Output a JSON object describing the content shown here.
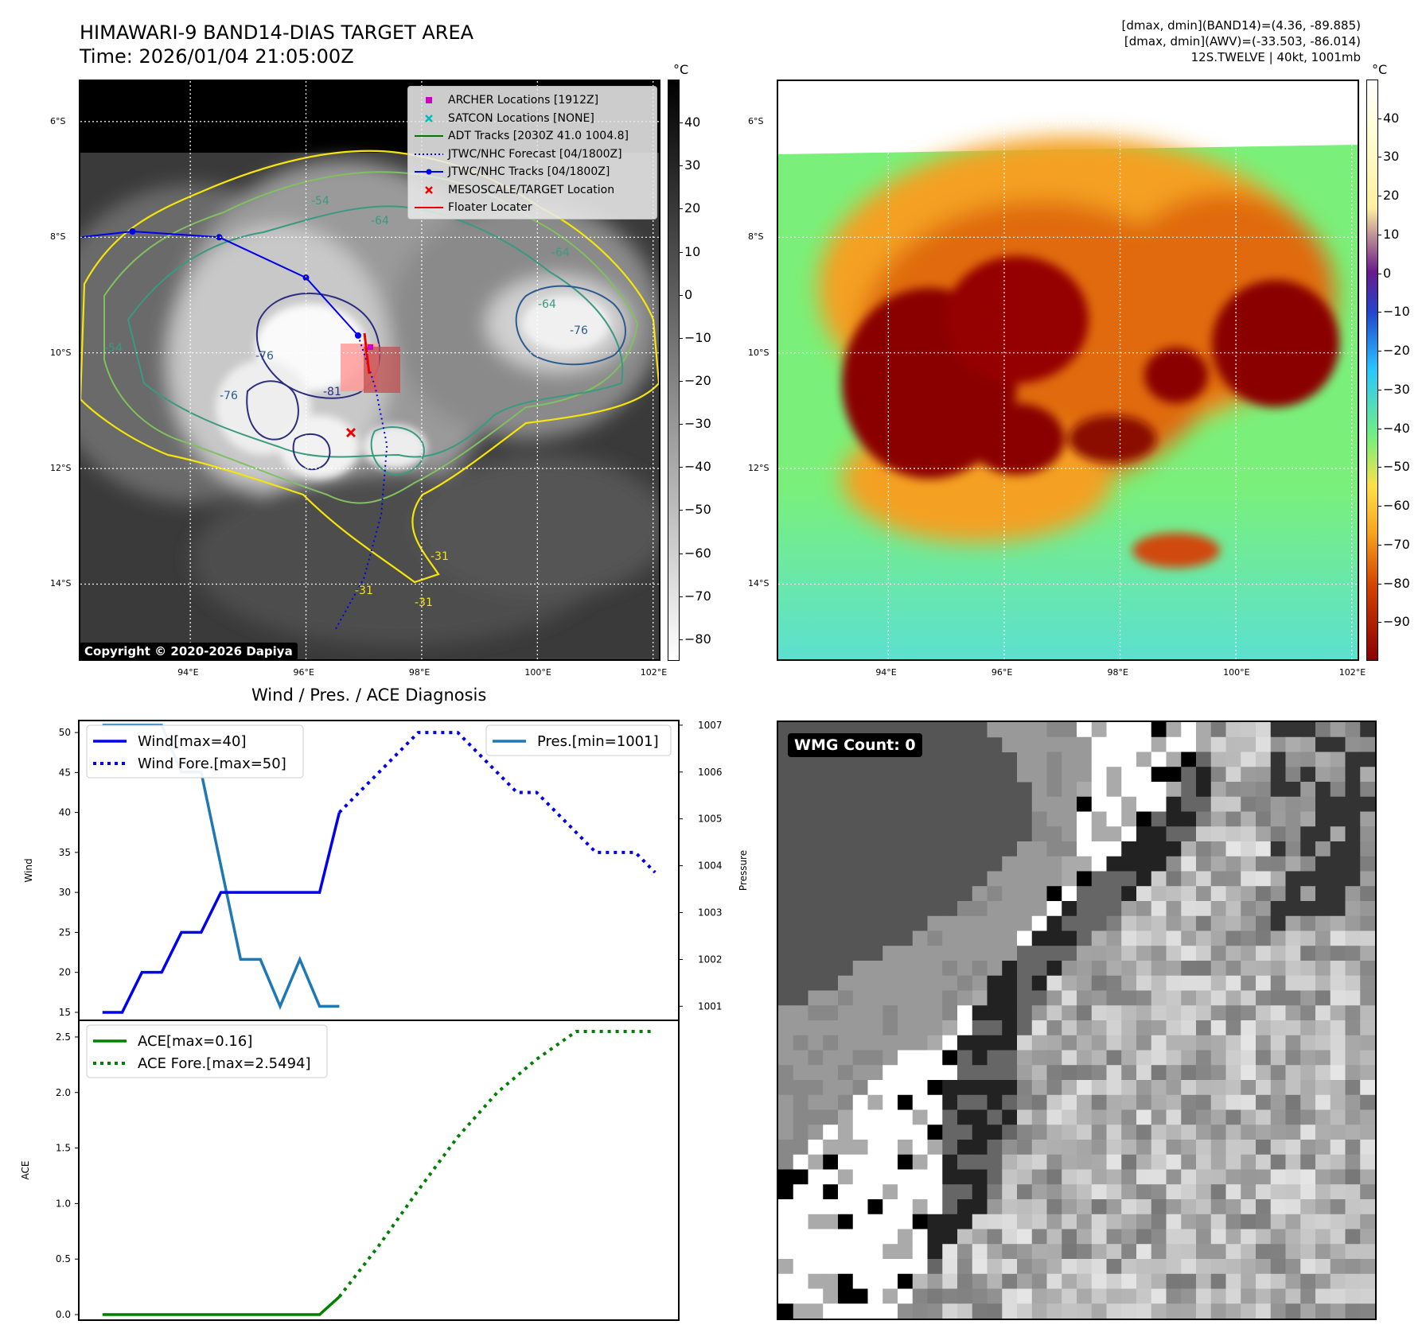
{
  "header": {
    "title_line1": "HIMAWARI-9 BAND14-DIAS TARGET AREA",
    "title_line2": "Time: 2026/01/04 21:05:00Z",
    "info_line1": "[dmax, dmin](BAND14)=(4.36, -89.885)",
    "info_line2": "[dmax, dmin](AWV)=(-33.503, -86.014)",
    "info_line3": "12S.TWELVE | 40kt, 1001mb"
  },
  "map_axes": {
    "lat_labels": [
      "6°S",
      "8°S",
      "10°S",
      "12°S",
      "14°S"
    ],
    "lon_labels": [
      "94°E",
      "96°E",
      "98°E",
      "100°E",
      "102°E"
    ],
    "lat_values": [
      -6,
      -8,
      -10,
      -12,
      -14
    ],
    "lon_values": [
      94,
      96,
      98,
      100,
      102
    ],
    "lat_range": [
      -15.3,
      -5.3
    ],
    "lon_range": [
      92.1,
      102.1
    ]
  },
  "ir_colorbar": {
    "unit": "°C",
    "ticks": [
      "40",
      "30",
      "20",
      "10",
      "0",
      "−10",
      "−20",
      "−30",
      "−40",
      "−50",
      "−60",
      "−70",
      "−80"
    ],
    "tick_values": [
      40,
      30,
      20,
      10,
      0,
      -10,
      -20,
      -30,
      -40,
      -50,
      -60,
      -70,
      -80
    ],
    "range": [
      -85,
      50
    ]
  },
  "awv_colorbar": {
    "unit": "°C",
    "ticks": [
      "40",
      "30",
      "20",
      "10",
      "0",
      "−10",
      "−20",
      "−30",
      "−40",
      "−50",
      "−60",
      "−70",
      "−80",
      "−90"
    ],
    "tick_values": [
      40,
      30,
      20,
      10,
      0,
      -10,
      -20,
      -30,
      -40,
      -50,
      -60,
      -70,
      -80,
      -90
    ],
    "range": [
      -100,
      50
    ]
  },
  "legend": {
    "items": [
      {
        "label": "ARCHER Locations [1912Z]",
        "color": "#cc00cc",
        "kind": "square"
      },
      {
        "label": "SATCON Locations [NONE]",
        "color": "#00bbbb",
        "kind": "x"
      },
      {
        "label": "ADT Tracks [2030Z 41.0 1004.8]",
        "color": "#007700",
        "kind": "line"
      },
      {
        "label": "JTWC/NHC Forecast [04/1800Z]",
        "color": "#0000ee",
        "kind": "dotted"
      },
      {
        "label": "JTWC/NHC Tracks [04/1800Z]",
        "color": "#0000ee",
        "kind": "line-dot"
      },
      {
        "label": "MESOSCALE/TARGET Location",
        "color": "#ee0000",
        "kind": "x"
      },
      {
        "label": "Floater Locater",
        "color": "#ee0000",
        "kind": "line"
      }
    ]
  },
  "copyright": "Copyright © 2020-2026 Dapiya",
  "contour_labels": [
    "-54",
    "-64",
    "-64",
    "-76",
    "-76",
    "-81",
    "-76",
    "-64",
    "-54",
    "-31",
    "-31",
    "-31"
  ],
  "track": {
    "best_track": [
      [
        92.1,
        -8.0
      ],
      [
        93.0,
        -7.9
      ],
      [
        94.5,
        -8.0
      ],
      [
        96.0,
        -8.7
      ],
      [
        96.9,
        -9.7
      ]
    ],
    "forecast": [
      [
        96.9,
        -9.7
      ],
      [
        97.2,
        -10.6
      ],
      [
        97.4,
        -11.6
      ],
      [
        97.3,
        -12.8
      ],
      [
        97.0,
        -13.9
      ],
      [
        96.5,
        -14.8
      ]
    ]
  },
  "chart_data": [
    {
      "type": "line",
      "title": "Wind / Pres. / ACE Diagnosis",
      "ylabel": "Wind",
      "y2label": "Pressure",
      "ylim": [
        14,
        51.5
      ],
      "y2lim": [
        1000.7,
        1007.1
      ],
      "yticks": [
        15,
        20,
        25,
        30,
        35,
        40,
        45,
        50
      ],
      "y2ticks": [
        1001,
        1002,
        1003,
        1004,
        1005,
        1006,
        1007
      ],
      "x": [
        0,
        1,
        2,
        3,
        4,
        5,
        6,
        7,
        8,
        9,
        10,
        11,
        12,
        13,
        14,
        15,
        16,
        17,
        18,
        19,
        20,
        21,
        22,
        23,
        24,
        25,
        26,
        27,
        28
      ],
      "series": [
        {
          "name": "Wind[max=40]",
          "axis": "left",
          "style": "solid",
          "color": "#0000ee",
          "x": [
            0,
            1,
            2,
            3,
            4,
            5,
            6,
            7,
            8,
            9,
            10,
            11,
            12
          ],
          "values": [
            15,
            15,
            20,
            20,
            25,
            25,
            30,
            30,
            30,
            30,
            30,
            30,
            40
          ]
        },
        {
          "name": "Wind Fore.[max=50]",
          "axis": "left",
          "style": "dotted",
          "color": "#0000ee",
          "x": [
            12,
            13,
            14,
            15,
            16,
            17,
            18,
            19,
            20,
            21,
            22,
            23,
            24,
            25,
            26,
            27,
            28
          ],
          "values": [
            40,
            42.5,
            45,
            47.5,
            50,
            50,
            50,
            47.5,
            45,
            42.5,
            42.5,
            40,
            37.5,
            35,
            35,
            35,
            32.5
          ]
        },
        {
          "name": "Pres.[min=1001]",
          "axis": "right",
          "style": "solid",
          "color": "#1f77b4",
          "x": [
            0,
            1,
            2,
            3,
            4,
            5,
            6,
            7,
            8,
            9,
            10,
            11,
            12
          ],
          "values": [
            1007,
            1007,
            1007,
            1007,
            1006,
            1006,
            1004,
            1002,
            1002,
            1001,
            1002,
            1001,
            1001
          ]
        }
      ]
    },
    {
      "type": "line",
      "ylabel": "ACE",
      "ylim": [
        -0.05,
        2.65
      ],
      "yticks": [
        0.0,
        0.5,
        1.0,
        1.5,
        2.0,
        2.5
      ],
      "ytick_labels": [
        "0.0",
        "0.5",
        "1.0",
        "1.5",
        "2.0",
        "2.5"
      ],
      "series": [
        {
          "name": "ACE[max=0.16]",
          "style": "solid",
          "color": "#008000",
          "x": [
            0,
            11,
            12
          ],
          "values": [
            0.0,
            0.0,
            0.16
          ]
        },
        {
          "name": "ACE Fore.[max=2.5494]",
          "style": "dotted",
          "color": "#008000",
          "x": [
            12,
            14,
            16,
            18,
            20,
            22,
            24,
            26,
            28
          ],
          "values": [
            0.16,
            0.62,
            1.12,
            1.6,
            2.0,
            2.3,
            2.5494,
            2.5494,
            2.5494
          ]
        }
      ]
    }
  ],
  "wmg": {
    "badge": "WMG Count: 0"
  }
}
